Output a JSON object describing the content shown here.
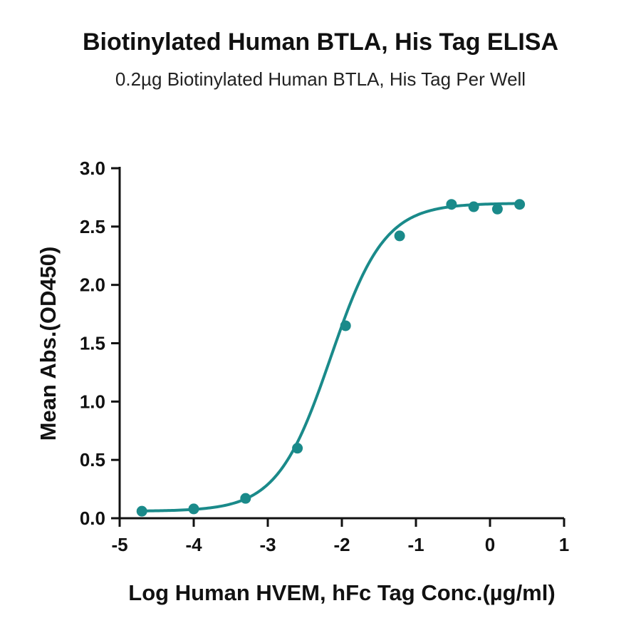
{
  "chart_data": {
    "type": "scatter",
    "title": "Biotinylated Human BTLA, His Tag ELISA",
    "subtitle": "0.2µg Biotinylated Human BTLA, His Tag Per Well",
    "xlabel": "Log  Human HVEM, hFc Tag Conc.(µg/ml)",
    "ylabel": "Mean Abs.(OD450)",
    "xlim": [
      -5,
      1
    ],
    "ylim": [
      0,
      3
    ],
    "x_ticks": [
      -5,
      -4,
      -3,
      -2,
      -1,
      0,
      1
    ],
    "x_tick_labels": [
      "-5",
      "-4",
      "-3",
      "-2",
      "-1",
      "0",
      "1"
    ],
    "y_ticks": [
      0,
      0.5,
      1,
      1.5,
      2,
      2.5,
      3
    ],
    "y_tick_labels": [
      "0.0",
      "0.5",
      "1.0",
      "1.5",
      "2.0",
      "2.5",
      "3.0"
    ],
    "grid": false,
    "color": "#1a8a8a",
    "series": [
      {
        "x": [
          -4.7,
          -4.0,
          -3.3,
          -2.6,
          -1.95,
          -1.22,
          -0.52,
          -0.22,
          0.1,
          0.4
        ],
        "y": [
          0.06,
          0.08,
          0.17,
          0.6,
          1.65,
          2.42,
          2.69,
          2.67,
          2.65,
          2.69
        ]
      }
    ],
    "fit_curve": {
      "type": "4PL",
      "bottom": 0.06,
      "top": 2.7,
      "log_ec50": -2.15,
      "hill_slope": 1.2
    }
  }
}
